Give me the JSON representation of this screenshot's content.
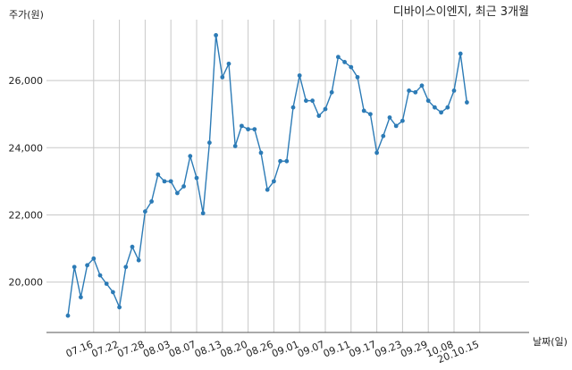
{
  "chart_data": {
    "type": "line",
    "title": "디바이스이엔지, 최근 3개월",
    "ylabel": "주가(원)",
    "xlabel": "날짜(일)",
    "ylim": [
      18500,
      27600
    ],
    "yticks": [
      20000,
      22000,
      24000,
      26000
    ],
    "ytick_labels": [
      "20,000",
      "22,000",
      "24,000",
      "26,000"
    ],
    "xtick_labels": [
      "07.16",
      "07.22",
      "07.28",
      "08.03",
      "08.07",
      "08.13",
      "08.20",
      "08.26",
      "09.01",
      "09.07",
      "09.11",
      "09.17",
      "09.23",
      "09.29",
      "10.08",
      "20.10.15"
    ],
    "xtick_index": [
      4,
      8,
      12,
      16,
      20,
      24,
      28,
      32,
      36,
      40,
      44,
      48,
      52,
      56,
      60,
      64
    ],
    "grid": true,
    "line_color": "#2c7bb6",
    "series": [
      {
        "values": [
          19000,
          20450,
          19550,
          20500,
          20700,
          20200,
          19950,
          19700,
          19250,
          20450,
          21050,
          20650,
          22100,
          22400,
          23200,
          23000,
          23000,
          22650,
          22850,
          23750,
          23100,
          22050,
          24150,
          27350,
          26100,
          26500,
          24050,
          24650,
          24550,
          24550,
          23850,
          22750,
          23000,
          23600,
          23600,
          25200,
          26150,
          25400,
          25400,
          24950,
          25150,
          25650,
          26700,
          26550,
          26400,
          26100,
          25100,
          25000,
          23850,
          24350,
          24900,
          24650,
          24800,
          25700,
          25650,
          25850,
          25400,
          25200,
          25050,
          25200,
          25700,
          26800,
          25350
        ]
      }
    ]
  }
}
